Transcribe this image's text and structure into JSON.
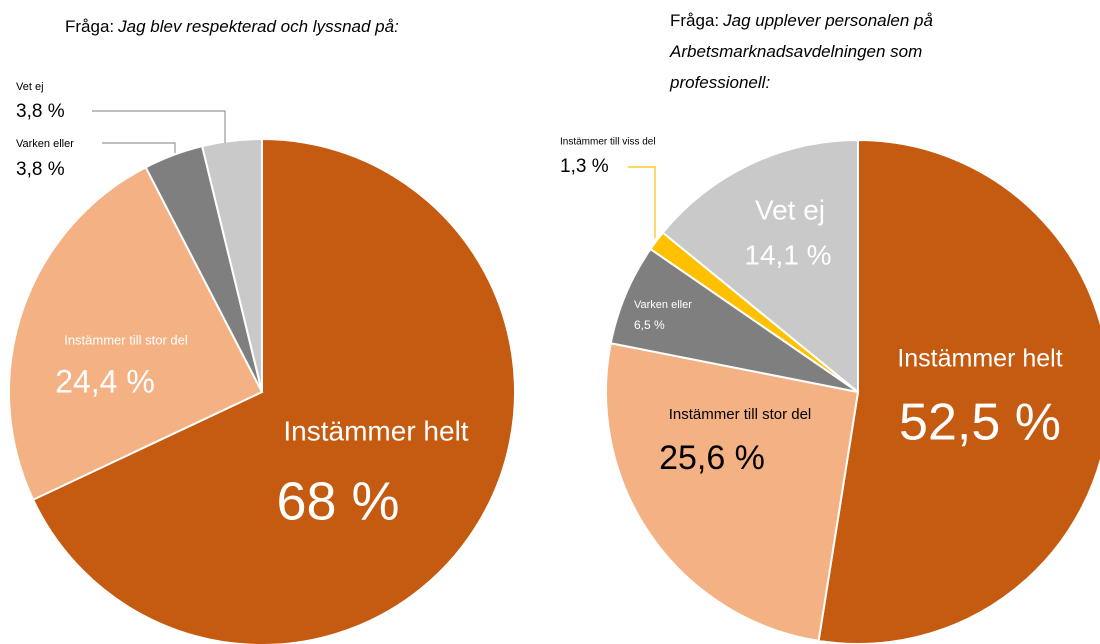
{
  "chart_data": [
    {
      "type": "pie",
      "title": "Fråga:",
      "subtitle": [
        "Jag blev respekterad och lyssnad på:"
      ],
      "categories": [
        "Instämmer helt",
        "Instämmer till stor del",
        "Varken eller",
        "Vet ej"
      ],
      "values": [
        68,
        24.4,
        3.8,
        3.8
      ],
      "value_labels": [
        "68 %",
        "24,4 %",
        "3,8 %",
        "3,8 %"
      ],
      "colors": [
        "#c55a11",
        "#f4b183",
        "#7f7f7f",
        "#c9c9c9"
      ]
    },
    {
      "type": "pie",
      "title": "Fråga:",
      "subtitle": [
        "Jag upplever personalen på",
        "Arbetsmarknadsavdelningen som",
        "professionell:"
      ],
      "categories": [
        "Instämmer helt",
        "Instämmer till stor del",
        "Varken eller",
        "Instämmer till viss del",
        "Vet ej"
      ],
      "values": [
        52.5,
        25.6,
        6.5,
        1.3,
        14.1
      ],
      "value_labels": [
        "52,5 %",
        "25,6 %",
        "6,5 %",
        "1,3 %",
        "14,1 %"
      ],
      "colors": [
        "#c55a11",
        "#f4b183",
        "#7f7f7f",
        "#ffc000",
        "#c9c9c9"
      ]
    }
  ]
}
